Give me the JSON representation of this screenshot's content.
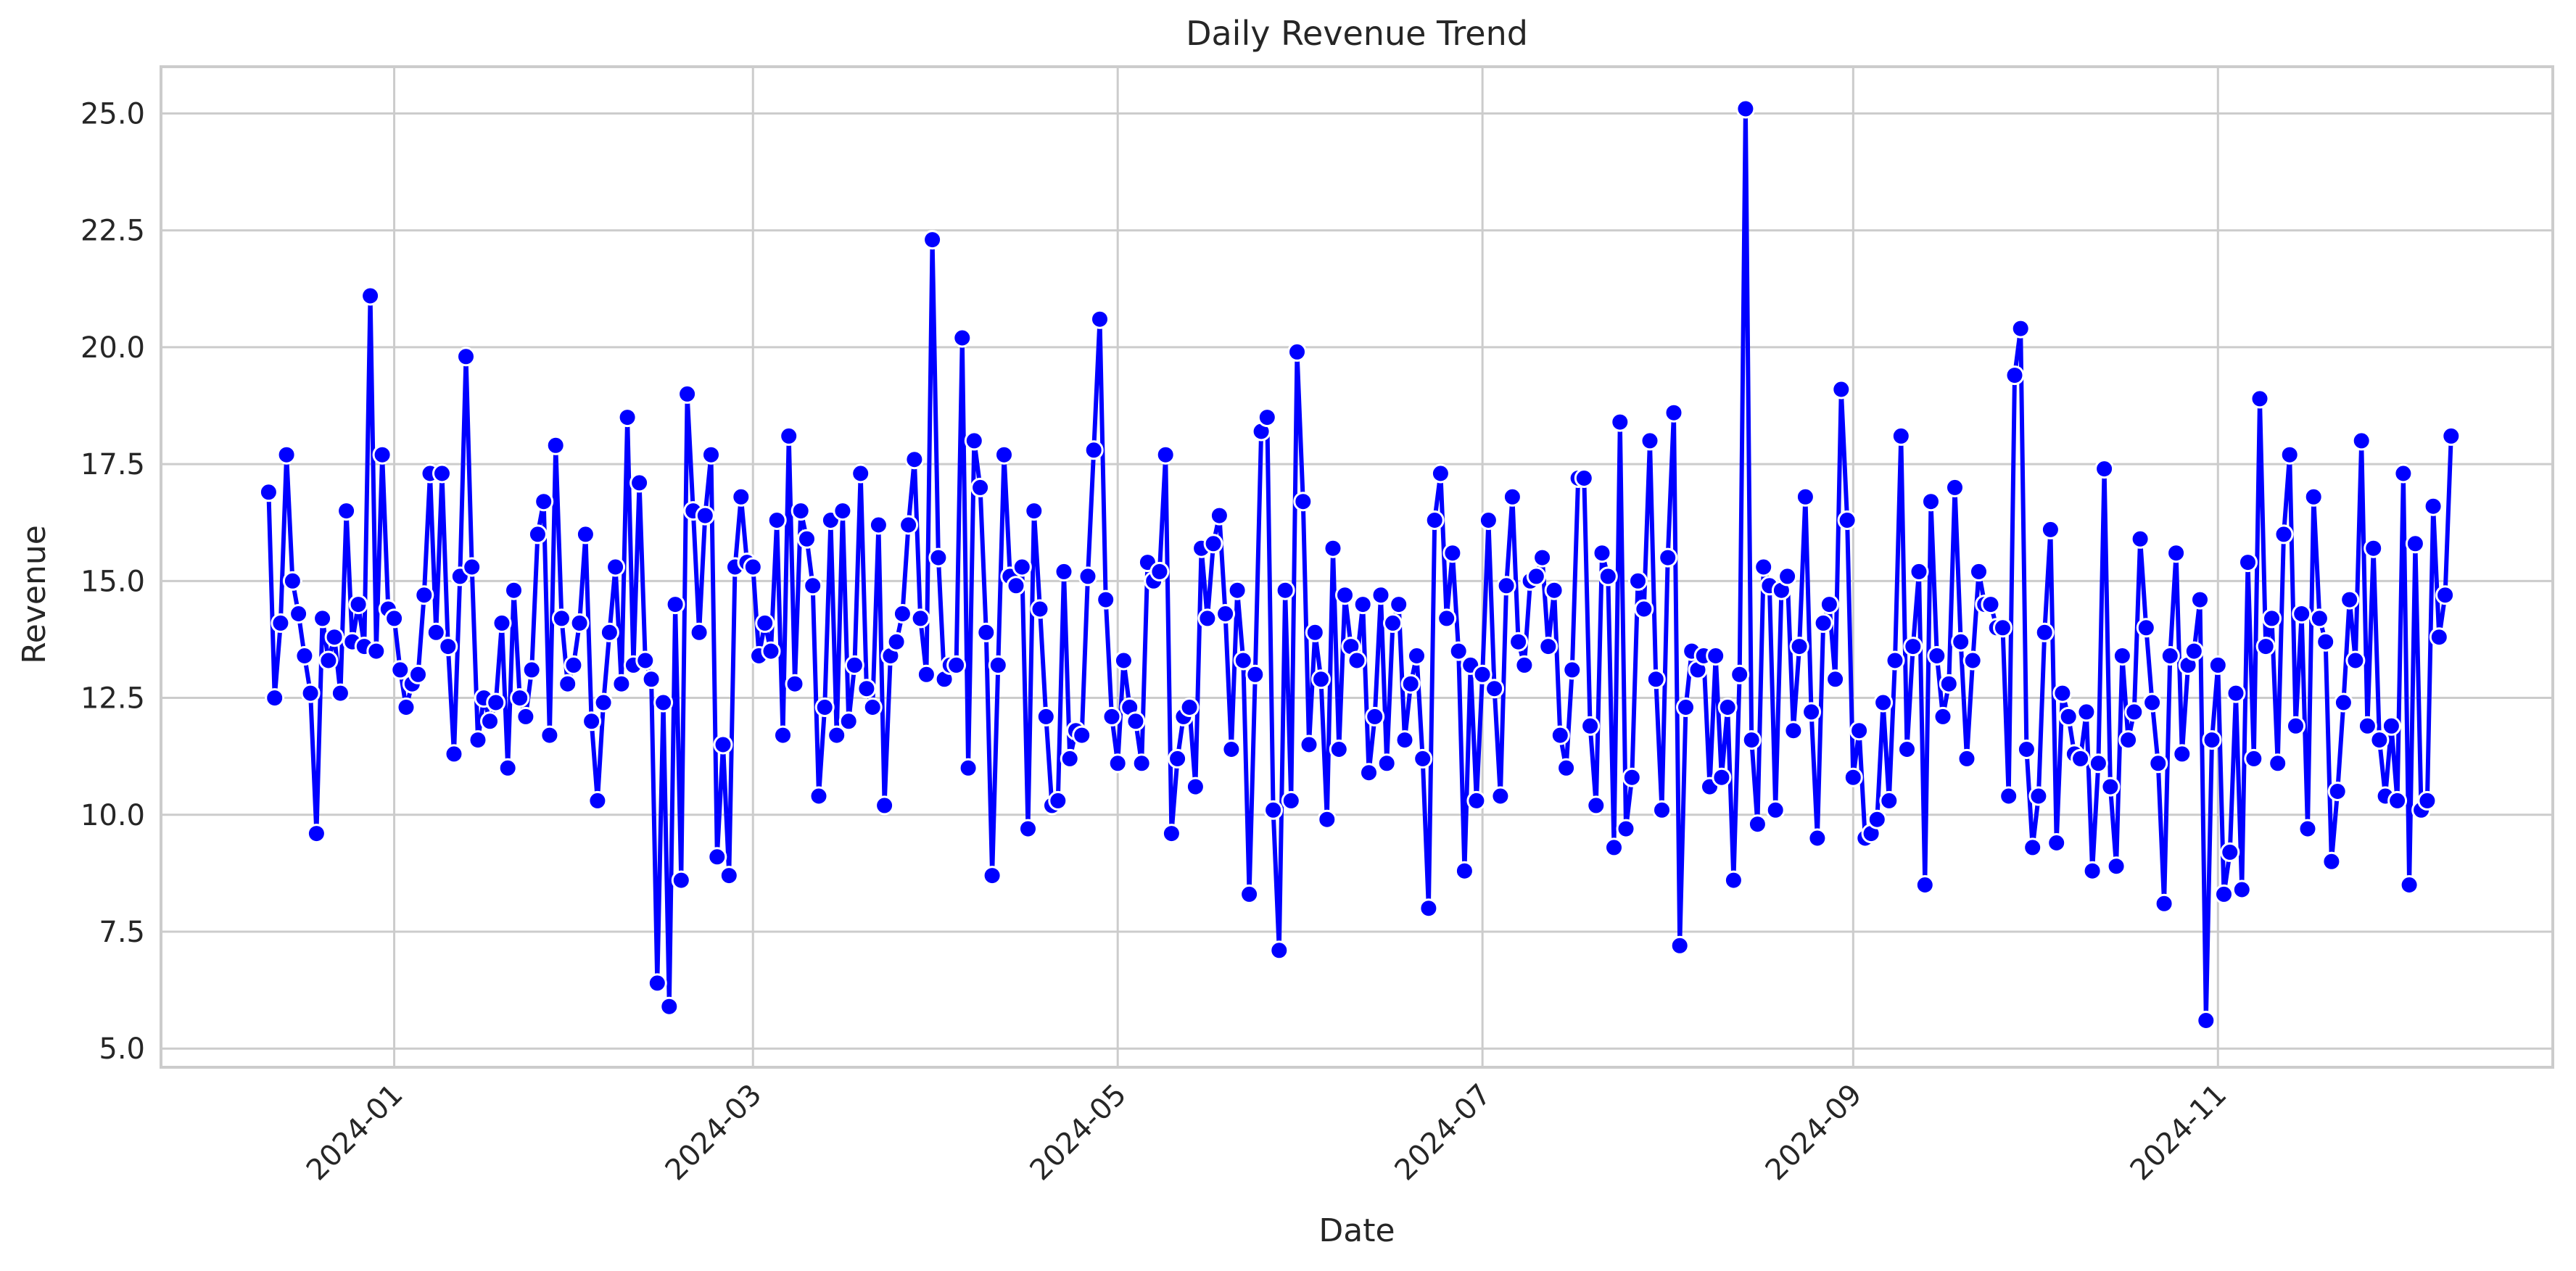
{
  "chart_data": {
    "type": "line",
    "title": "Daily Revenue Trend",
    "xlabel": "Date",
    "ylabel": "Revenue",
    "start_date": "2023-12-11",
    "end_date": "2024-12-09",
    "xlim": [
      "2023-11-23",
      "2024-12-27"
    ],
    "ylim": [
      4.6,
      26.0
    ],
    "yticks": [
      5.0,
      7.5,
      10.0,
      12.5,
      15.0,
      17.5,
      20.0,
      22.5,
      25.0
    ],
    "yticklabels": [
      "5.0",
      "7.5",
      "10.0",
      "12.5",
      "15.0",
      "17.5",
      "20.0",
      "22.5",
      "25.0"
    ],
    "xticks": [
      "2024-01-01",
      "2024-03-01",
      "2024-05-01",
      "2024-07-01",
      "2024-09-01",
      "2024-11-01"
    ],
    "xticklabels": [
      "2024-01",
      "2024-03",
      "2024-05",
      "2024-07",
      "2024-09",
      "2024-11"
    ],
    "grid": true,
    "series": [
      {
        "color": "#0000ff",
        "marker": "circle",
        "values": [
          16.9,
          12.5,
          14.1,
          17.7,
          15.0,
          14.3,
          13.4,
          12.6,
          9.6,
          14.2,
          13.3,
          13.8,
          12.6,
          16.5,
          13.7,
          14.5,
          13.6,
          21.1,
          13.5,
          17.7,
          14.4,
          14.2,
          13.1,
          12.3,
          12.8,
          13.0,
          14.7,
          17.3,
          13.9,
          17.3,
          13.6,
          11.3,
          15.1,
          19.8,
          15.3,
          11.6,
          12.5,
          12.0,
          12.4,
          14.1,
          11.0,
          14.8,
          12.5,
          12.1,
          13.1,
          16.0,
          16.7,
          11.7,
          17.9,
          14.2,
          12.8,
          13.2,
          14.1,
          16.0,
          12.0,
          10.3,
          12.4,
          13.9,
          15.3,
          12.8,
          18.5,
          13.2,
          17.1,
          13.3,
          12.9,
          6.4,
          12.4,
          5.9,
          14.5,
          8.6,
          19.0,
          16.5,
          13.9,
          16.4,
          17.7,
          9.1,
          11.5,
          8.7,
          15.3,
          16.8,
          15.4,
          15.3,
          13.4,
          14.1,
          13.5,
          16.3,
          11.7,
          18.1,
          12.8,
          16.5,
          15.9,
          14.9,
          10.4,
          12.3,
          16.3,
          11.7,
          16.5,
          12.0,
          13.2,
          17.3,
          12.7,
          12.3,
          16.2,
          10.2,
          13.4,
          13.7,
          14.3,
          16.2,
          17.6,
          14.2,
          13.0,
          22.3,
          15.5,
          12.9,
          13.2,
          13.2,
          20.2,
          11.0,
          18.0,
          17.0,
          13.9,
          8.7,
          13.2,
          17.7,
          15.1,
          14.9,
          15.3,
          9.7,
          16.5,
          14.4,
          12.1,
          10.2,
          10.3,
          15.2,
          11.2,
          11.8,
          11.7,
          15.1,
          17.8,
          20.6,
          14.6,
          12.1,
          11.1,
          13.3,
          12.3,
          12.0,
          11.1,
          15.4,
          15.0,
          15.2,
          17.7,
          9.6,
          11.2,
          12.1,
          12.3,
          10.6,
          15.7,
          14.2,
          15.8,
          16.4,
          14.3,
          11.4,
          14.8,
          13.3,
          8.3,
          13.0,
          18.2,
          18.5,
          10.1,
          7.1,
          14.8,
          10.3,
          19.9,
          16.7,
          11.5,
          13.9,
          12.9,
          9.9,
          15.7,
          11.4,
          14.7,
          13.6,
          13.3,
          14.5,
          10.9,
          12.1,
          14.7,
          11.1,
          14.1,
          14.5,
          11.6,
          12.8,
          13.4,
          11.2,
          8.0,
          16.3,
          17.3,
          14.2,
          15.6,
          13.5,
          8.8,
          13.2,
          10.3,
          13.0,
          16.3,
          12.7,
          10.4,
          14.9,
          16.8,
          13.7,
          13.2,
          15.0,
          15.1,
          15.5,
          13.6,
          14.8,
          11.7,
          11.0,
          13.1,
          17.2,
          17.2,
          11.9,
          10.2,
          15.6,
          15.1,
          9.3,
          18.4,
          9.7,
          10.8,
          15.0,
          14.4,
          18.0,
          12.9,
          10.1,
          15.5,
          18.6,
          7.2,
          12.3,
          13.5,
          13.1,
          13.4,
          10.6,
          13.4,
          10.8,
          12.3,
          8.6,
          13.0,
          25.1,
          11.6,
          9.8,
          15.3,
          14.9,
          10.1,
          14.8,
          15.1,
          11.8,
          13.6,
          16.8,
          12.2,
          9.5,
          14.1,
          14.5,
          12.9,
          19.1,
          16.3,
          10.8,
          11.8,
          9.5,
          9.6,
          9.9,
          12.4,
          10.3,
          13.3,
          18.1,
          11.4,
          13.6,
          15.2,
          8.5,
          16.7,
          13.4,
          12.1,
          12.8,
          17.0,
          13.7,
          11.2,
          13.3,
          15.2,
          14.5,
          14.5,
          14.0,
          14.0,
          10.4,
          19.4,
          20.4,
          11.4,
          9.3,
          10.4,
          13.9,
          16.1,
          9.4,
          12.6,
          12.1,
          11.3,
          11.2,
          12.2,
          8.8,
          11.1,
          17.4,
          10.6,
          8.9,
          13.4,
          11.6,
          12.2,
          15.9,
          14.0,
          12.4,
          11.1,
          8.1,
          13.4,
          15.6,
          11.3,
          13.2,
          13.5,
          14.6,
          5.6,
          11.6,
          13.2,
          8.3,
          9.2,
          12.6,
          8.4,
          15.4,
          11.2,
          18.9,
          13.6,
          14.2,
          11.1,
          16.0,
          17.7,
          11.9,
          14.3,
          9.7,
          16.8,
          14.2,
          13.7,
          9.0,
          10.5,
          12.4,
          14.6,
          13.3,
          18.0,
          11.9,
          15.7,
          11.6,
          10.4,
          11.9,
          10.3,
          17.3,
          8.5,
          15.8,
          10.1,
          10.3,
          16.6,
          13.8,
          14.7,
          18.1
        ]
      }
    ]
  }
}
